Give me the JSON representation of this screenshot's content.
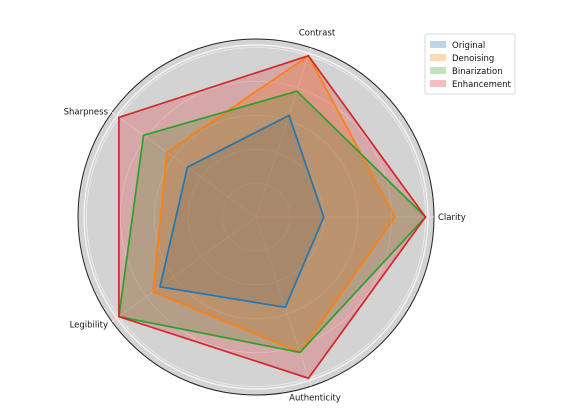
{
  "chart_data": {
    "type": "radar",
    "categories": [
      "Clarity",
      "Contrast",
      "Sharpness",
      "Legibility",
      "Authenticity"
    ],
    "series": [
      {
        "name": "Original",
        "values": [
          0.4,
          0.63,
          0.5,
          0.7,
          0.56
        ],
        "color": "#1f77b4",
        "fill_opacity": 0.25
      },
      {
        "name": "Denoising",
        "values": [
          0.82,
          1.0,
          0.65,
          0.75,
          0.84
        ],
        "color": "#ff7f0e",
        "fill_opacity": 0.25
      },
      {
        "name": "Binarization",
        "values": [
          1.0,
          0.78,
          0.82,
          1.0,
          0.84
        ],
        "color": "#2ca02c",
        "fill_opacity": 0.25
      },
      {
        "name": "Enhancement",
        "values": [
          1.0,
          1.0,
          1.0,
          1.0,
          1.0
        ],
        "color": "#d62728",
        "fill_opacity": 0.25
      }
    ],
    "rlim": [
      0,
      1.05
    ],
    "grid_rings": [
      0.2,
      0.4,
      0.6,
      0.8,
      1.0
    ],
    "background": "#d3d3d3",
    "grid": true,
    "legend_placement": "top-right"
  }
}
